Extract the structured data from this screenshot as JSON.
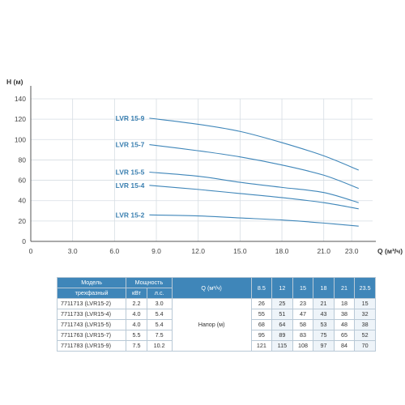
{
  "chart_data": {
    "type": "line",
    "xlabel": "Q (м³/ч)",
    "ylabel": "H (м)",
    "xlim": [
      0,
      24.5
    ],
    "ylim": [
      0,
      140
    ],
    "x_ticks": [
      0,
      3.0,
      6.0,
      9.0,
      12.0,
      15.0,
      18.0,
      21.0,
      23.0
    ],
    "x_tick_labels": [
      "0",
      "3.0",
      "6.0",
      "9.0",
      "12.0",
      "15.0",
      "18.0",
      "21.0",
      "23.0"
    ],
    "y_ticks": [
      0,
      20,
      40,
      60,
      80,
      100,
      120,
      140
    ],
    "grid": true,
    "series": [
      {
        "name": "LVR 15-9",
        "x": [
          8.5,
          12,
          15,
          18,
          21,
          23.5
        ],
        "values": [
          121,
          115,
          108,
          97,
          84,
          70
        ]
      },
      {
        "name": "LVR 15-7",
        "x": [
          8.5,
          12,
          15,
          18,
          21,
          23.5
        ],
        "values": [
          95,
          89,
          83,
          75,
          65,
          52
        ]
      },
      {
        "name": "LVR 15-5",
        "x": [
          8.5,
          12,
          15,
          18,
          21,
          23.5
        ],
        "values": [
          68,
          64,
          58,
          53,
          48,
          38
        ]
      },
      {
        "name": "LVR 15-4",
        "x": [
          8.5,
          12,
          15,
          18,
          21,
          23.5
        ],
        "values": [
          55,
          51,
          47,
          43,
          38,
          32
        ]
      },
      {
        "name": "LVR 15-2",
        "x": [
          8.5,
          12,
          15,
          18,
          21,
          23.5
        ],
        "values": [
          26,
          25,
          23,
          21,
          18,
          15
        ]
      }
    ]
  },
  "table": {
    "model_header": "Модель",
    "model_subheader": "трехфазный",
    "power_header": "Мощность",
    "kw_header": "кВт",
    "hp_header": "л.с.",
    "q_header": "Q (м³/ч)",
    "head_label": "Напор (м)",
    "q_values": [
      "8.5",
      "12",
      "15",
      "18",
      "21",
      "23.5"
    ],
    "rows": [
      {
        "model": "7711713 (LVR15-2)",
        "kw": "2.2",
        "hp": "3.0",
        "heads": [
          "26",
          "25",
          "23",
          "21",
          "18",
          "15"
        ]
      },
      {
        "model": "7711733 (LVR15-4)",
        "kw": "4.0",
        "hp": "5.4",
        "heads": [
          "55",
          "51",
          "47",
          "43",
          "38",
          "32"
        ]
      },
      {
        "model": "7711743 (LVR15-5)",
        "kw": "4.0",
        "hp": "5.4",
        "heads": [
          "68",
          "64",
          "58",
          "53",
          "48",
          "38"
        ]
      },
      {
        "model": "7711763 (LVR15-7)",
        "kw": "5.5",
        "hp": "7.5",
        "heads": [
          "95",
          "89",
          "83",
          "75",
          "65",
          "52"
        ]
      },
      {
        "model": "7711783 (LVR15-9)",
        "kw": "7.5",
        "hp": "10.2",
        "heads": [
          "121",
          "115",
          "108",
          "97",
          "84",
          "70"
        ]
      }
    ]
  },
  "colors": {
    "curve": "#3f86b9",
    "label": "#3a7fb0",
    "grid": "#d6dde3",
    "header_bg": "#3f86b9"
  }
}
